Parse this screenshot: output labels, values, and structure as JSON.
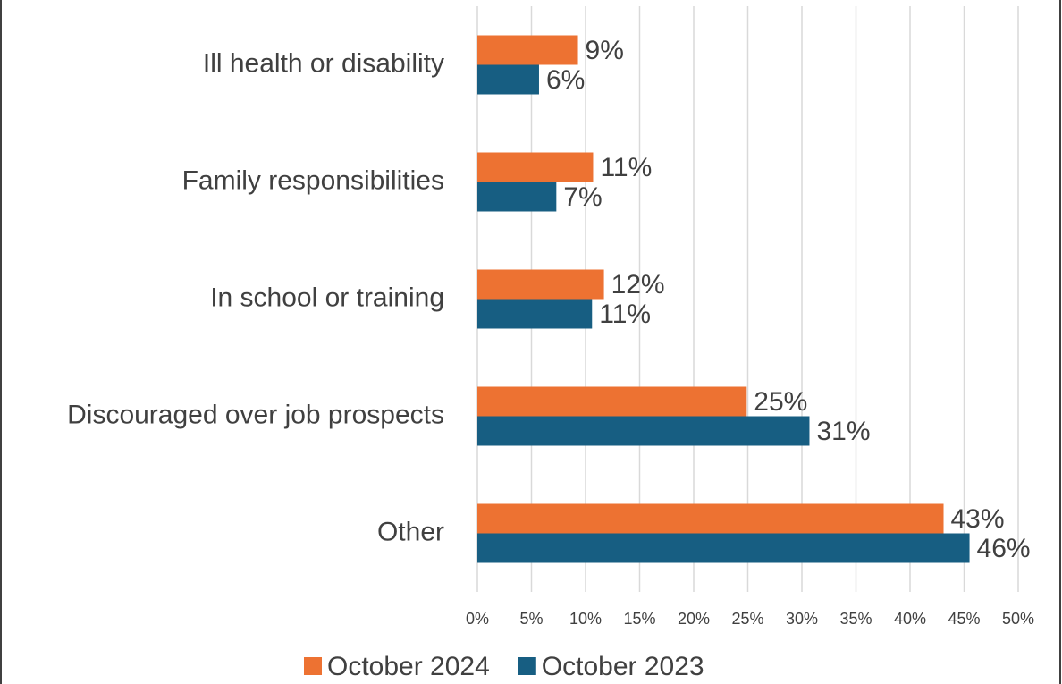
{
  "chart_data": {
    "type": "hbar",
    "categories": [
      "Ill health or disability",
      "Family responsibilities",
      "In school or training",
      "Discouraged over job prospects",
      "Other"
    ],
    "series": [
      {
        "name": "October 2024",
        "color": "#ed7232",
        "values": [
          9.3,
          10.7,
          11.7,
          24.9,
          43.1
        ],
        "value_labels": [
          "9%",
          "11%",
          "12%",
          "25%",
          "43%"
        ]
      },
      {
        "name": "October 2023",
        "color": "#175e82",
        "values": [
          5.7,
          7.3,
          10.6,
          30.7,
          45.5
        ],
        "value_labels": [
          "6%",
          "7%",
          "11%",
          "31%",
          "46%"
        ]
      }
    ],
    "xlim": [
      0,
      50
    ],
    "xticks": [
      {
        "value": 0,
        "label": "0%"
      },
      {
        "value": 5,
        "label": "5%"
      },
      {
        "value": 10,
        "label": "10%"
      },
      {
        "value": 15,
        "label": "15%"
      },
      {
        "value": 20,
        "label": "20%"
      },
      {
        "value": 25,
        "label": "25%"
      },
      {
        "value": 30,
        "label": "30%"
      },
      {
        "value": 35,
        "label": "35%"
      },
      {
        "value": 40,
        "label": "40%"
      },
      {
        "value": 45,
        "label": "45%"
      },
      {
        "value": 50,
        "label": "50%"
      }
    ],
    "grid": true,
    "legend": "bottom"
  }
}
